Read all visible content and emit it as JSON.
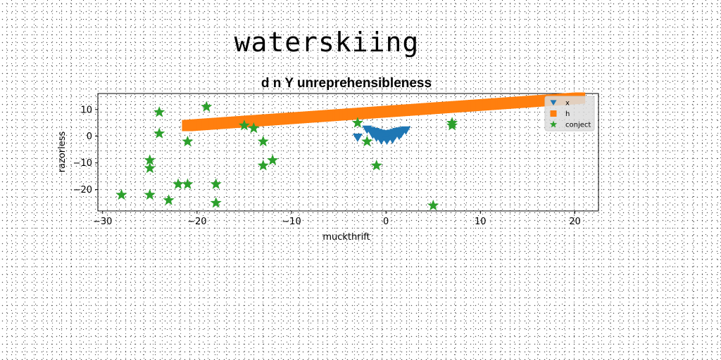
{
  "suptitle": "waterskiing",
  "chart_data": {
    "type": "scatter",
    "title": "d n Y unreprehensibleness",
    "xlabel": "muckthrift",
    "ylabel": "razorless",
    "xlim": [
      -30.5,
      22.5
    ],
    "ylim": [
      -28,
      16
    ],
    "xticks": [
      -30,
      -20,
      -10,
      0,
      10,
      20
    ],
    "yticks": [
      -20,
      -10,
      0,
      10
    ],
    "legend_position": "upper right",
    "series": [
      {
        "name": "x",
        "marker": "triangle-down",
        "color": "#1f77b4",
        "x": [
          -3.0,
          -2.0,
          -1.6,
          -1.2,
          -0.9,
          -0.6,
          -0.3,
          0.0,
          0.3,
          0.6,
          0.9,
          1.2,
          1.5,
          1.8,
          2.1,
          -1.4,
          -0.8,
          -0.2,
          0.4,
          1.0,
          1.6,
          -1.0,
          -0.4,
          0.2,
          0.8,
          1.4,
          -0.5,
          0.1,
          0.7
        ],
        "y": [
          -0.5,
          2.5,
          2.0,
          1.6,
          1.3,
          1.0,
          0.8,
          0.6,
          0.8,
          1.0,
          1.3,
          1.6,
          1.8,
          2.0,
          2.2,
          0.6,
          0.2,
          -0.2,
          0.0,
          0.4,
          0.9,
          -0.5,
          -0.9,
          -0.8,
          -0.4,
          0.2,
          -1.5,
          -1.6,
          -1.2
        ]
      },
      {
        "name": "h",
        "marker": "square",
        "color": "#ff7f0e",
        "x_range": [
          -21,
          20.5
        ],
        "y_range": [
          4,
          14.3
        ],
        "count": 160
      },
      {
        "name": "conject",
        "marker": "star",
        "color": "#2ca02c",
        "x": [
          -28,
          -25,
          -25,
          -25,
          -24,
          -24,
          -23,
          -22,
          -21,
          -21,
          -19,
          -18,
          -18,
          -15,
          -14,
          -13,
          -13,
          -12,
          -3,
          -2,
          -1,
          5,
          7,
          7
        ],
        "y": [
          -22,
          -22,
          -9,
          -12,
          9,
          1,
          -24,
          -18,
          -18,
          -2,
          11,
          -18,
          -25,
          4,
          3,
          -2,
          -11,
          -9,
          5,
          -2,
          -11,
          -26,
          4,
          5
        ]
      }
    ]
  }
}
